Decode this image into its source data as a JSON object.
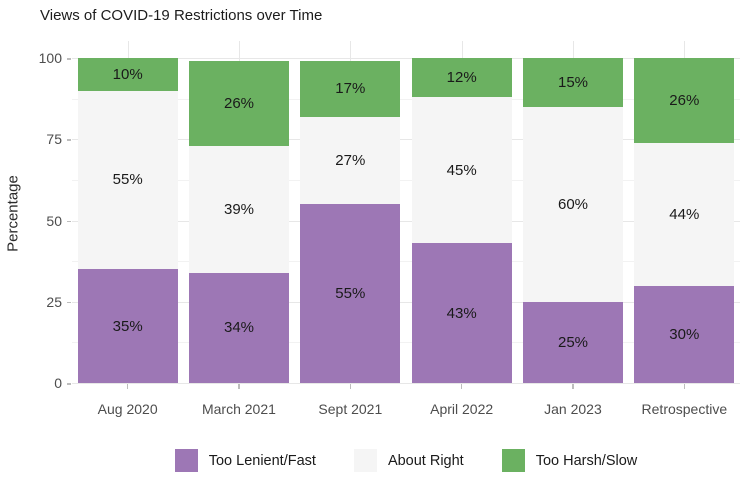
{
  "title": "Views of COVID-19 Restrictions over Time",
  "chart_data": {
    "type": "bar",
    "stacked": true,
    "orientation": "vertical",
    "title": "Views of COVID-19 Restrictions over Time",
    "ylabel": "Percentage",
    "xlabel": "",
    "categories": [
      "Aug 2020",
      "March 2021",
      "Sept 2021",
      "April 2022",
      "Jan 2023",
      "Retrospective"
    ],
    "series": [
      {
        "name": "Too Lenient/Fast",
        "color": "#9d77b5",
        "values": [
          35,
          34,
          55,
          43,
          25,
          30
        ]
      },
      {
        "name": "About Right",
        "color": "#f5f5f5",
        "values": [
          55,
          39,
          27,
          45,
          60,
          44
        ]
      },
      {
        "name": "Too Harsh/Slow",
        "color": "#6bb161",
        "values": [
          10,
          26,
          17,
          12,
          15,
          26
        ]
      }
    ],
    "value_suffix": "%",
    "y_ticks": [
      0,
      25,
      50,
      75,
      100
    ],
    "y_minor_ticks": [
      12.5,
      37.5,
      62.5,
      87.5
    ],
    "ylim": [
      0,
      100
    ],
    "grid": true,
    "legend_position": "bottom",
    "colors": {
      "major_grid": "#e7e7e7",
      "minor_grid": "#f2f2f2",
      "axis_text": "#4d4d4d",
      "tick": "#bdbdbd",
      "bar_label": "#1a1a1a",
      "background": "#ffffff"
    }
  }
}
